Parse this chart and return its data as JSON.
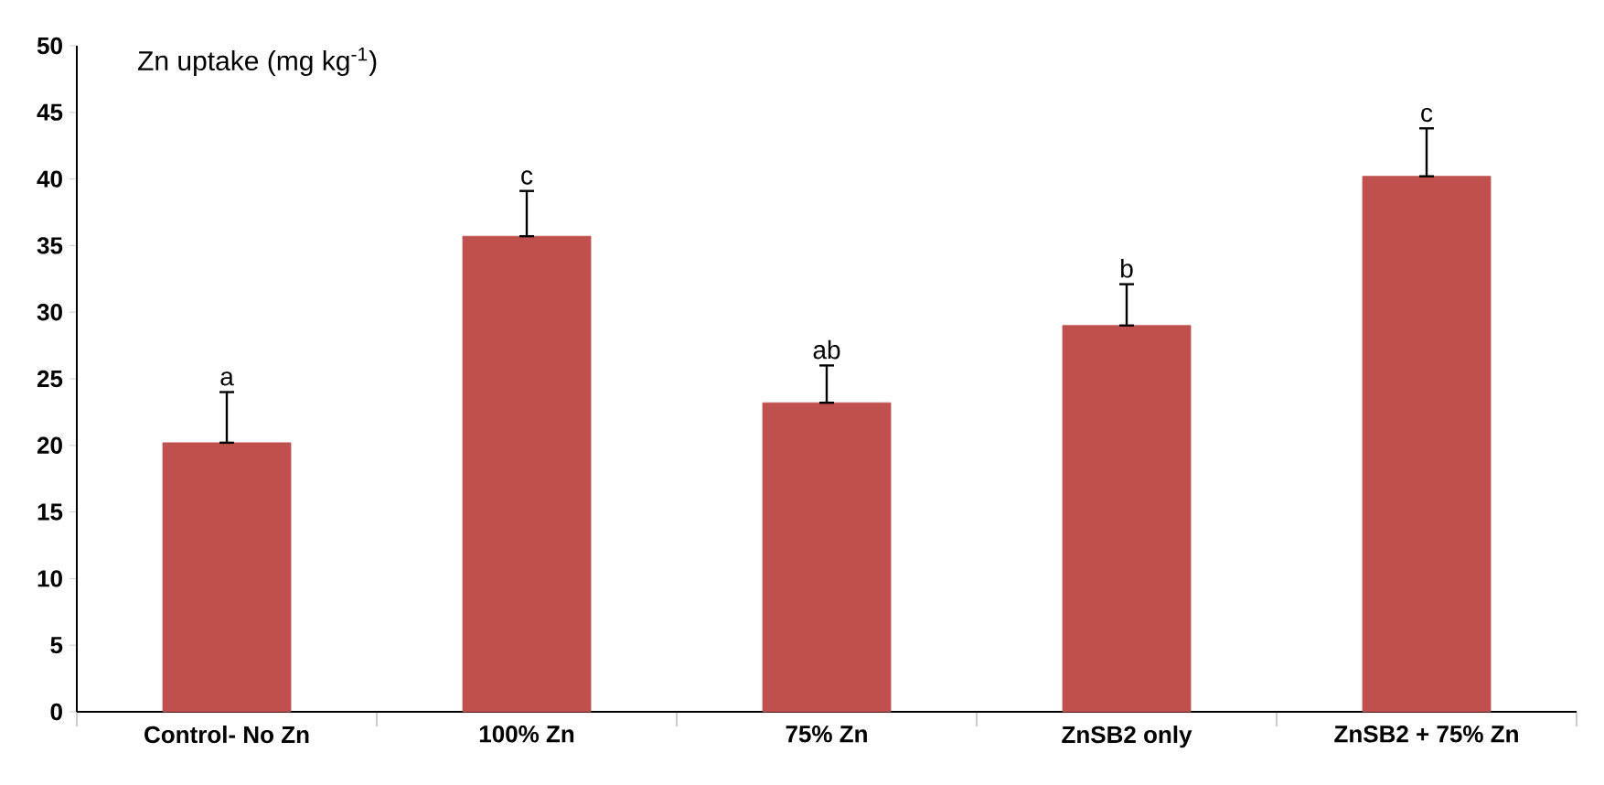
{
  "chart_data": {
    "type": "bar",
    "title": "Zn uptake (mg kg$^{-1}$)",
    "categories": [
      "Control- No Zn",
      "100% Zn",
      "75% Zn",
      "ZnSB2 only",
      "ZnSB2 + 75% Zn"
    ],
    "values": [
      20.2,
      35.7,
      23.2,
      29.0,
      40.2
    ],
    "errors": [
      [
        20.2,
        24.0
      ],
      [
        35.7,
        39.1
      ],
      [
        23.2,
        26.0
      ],
      [
        29.0,
        32.1
      ],
      [
        40.2,
        43.8
      ]
    ],
    "color": "#c0504d",
    "ylim": [
      0,
      50
    ],
    "yticks": [
      0,
      5,
      10,
      15,
      20,
      25,
      30,
      35,
      40,
      45,
      50
    ],
    "grid": false,
    "annotations": [
      {
        "text": "a",
        "x": "Control- No Zn",
        "y": 24.0
      },
      {
        "text": "c",
        "x": "100% Zn",
        "y": 39.1
      },
      {
        "text": "ab",
        "x": "75% Zn",
        "y": 26.0
      },
      {
        "text": "b",
        "x": "ZnSB2 only",
        "y": 32.1
      },
      {
        "text": "c",
        "x": "ZnSB2 + 75% Zn",
        "y": 43.8
      }
    ]
  }
}
